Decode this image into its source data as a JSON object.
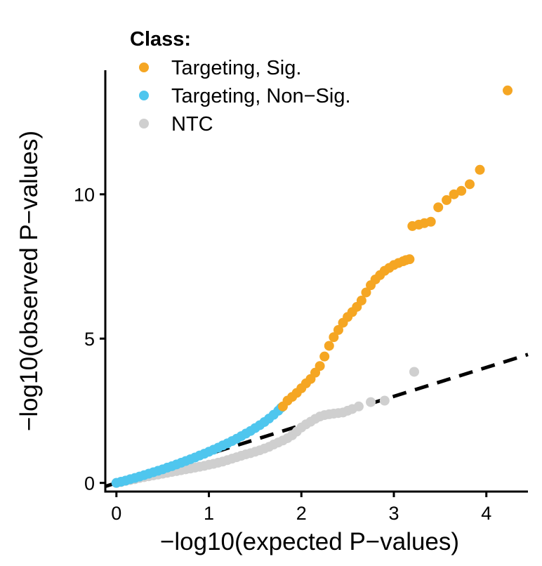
{
  "chart_data": {
    "type": "scatter",
    "title": "",
    "xlabel": "−log10(expected P−values)",
    "ylabel": "−log10(observed P−values)",
    "xlim": [
      -0.12,
      4.45
    ],
    "ylim": [
      -0.3,
      14.3
    ],
    "xticks": [
      0,
      1,
      2,
      3,
      4
    ],
    "yticks": [
      0,
      5,
      10
    ],
    "grid": false,
    "legend": {
      "title": "Class:",
      "position": "top-left",
      "entries": [
        {
          "label": "Targeting, Sig.",
          "color": "#F5A623"
        },
        {
          "label": "Targeting, Non−Sig.",
          "color": "#4FC6EE"
        },
        {
          "label": "NTC",
          "color": "#CFCFCF"
        }
      ]
    },
    "reference_line": {
      "style": "dashed",
      "color": "#000000",
      "points": [
        [
          -0.12,
          -0.12
        ],
        [
          4.45,
          4.45
        ]
      ]
    },
    "series": [
      {
        "name": "NTC",
        "color": "#CFCFCF",
        "points": [
          [
            0.0,
            0.0
          ],
          [
            0.05,
            0.03
          ],
          [
            0.1,
            0.07
          ],
          [
            0.15,
            0.1
          ],
          [
            0.2,
            0.13
          ],
          [
            0.25,
            0.17
          ],
          [
            0.3,
            0.2
          ],
          [
            0.35,
            0.23
          ],
          [
            0.4,
            0.26
          ],
          [
            0.45,
            0.29
          ],
          [
            0.5,
            0.32
          ],
          [
            0.55,
            0.35
          ],
          [
            0.6,
            0.38
          ],
          [
            0.65,
            0.41
          ],
          [
            0.7,
            0.44
          ],
          [
            0.75,
            0.47
          ],
          [
            0.8,
            0.5
          ],
          [
            0.85,
            0.53
          ],
          [
            0.9,
            0.56
          ],
          [
            0.95,
            0.59
          ],
          [
            1.0,
            0.63
          ],
          [
            1.05,
            0.66
          ],
          [
            1.1,
            0.7
          ],
          [
            1.15,
            0.74
          ],
          [
            1.2,
            0.79
          ],
          [
            1.25,
            0.84
          ],
          [
            1.3,
            0.89
          ],
          [
            1.35,
            0.94
          ],
          [
            1.4,
            0.99
          ],
          [
            1.45,
            1.03
          ],
          [
            1.5,
            1.08
          ],
          [
            1.55,
            1.13
          ],
          [
            1.6,
            1.19
          ],
          [
            1.65,
            1.25
          ],
          [
            1.7,
            1.33
          ],
          [
            1.75,
            1.4
          ],
          [
            1.8,
            1.47
          ],
          [
            1.85,
            1.55
          ],
          [
            1.9,
            1.65
          ],
          [
            1.95,
            1.78
          ],
          [
            2.0,
            1.92
          ],
          [
            2.05,
            2.03
          ],
          [
            2.1,
            2.12
          ],
          [
            2.15,
            2.22
          ],
          [
            2.2,
            2.3
          ],
          [
            2.25,
            2.35
          ],
          [
            2.3,
            2.38
          ],
          [
            2.35,
            2.4
          ],
          [
            2.4,
            2.42
          ],
          [
            2.45,
            2.44
          ],
          [
            2.5,
            2.5
          ],
          [
            2.55,
            2.56
          ],
          [
            2.62,
            2.65
          ],
          [
            2.75,
            2.8
          ],
          [
            2.9,
            2.85
          ],
          [
            3.22,
            3.85
          ]
        ]
      },
      {
        "name": "Targeting, Non−Sig.",
        "color": "#4FC6EE",
        "points": [
          [
            0.0,
            0.0
          ],
          [
            0.05,
            0.04
          ],
          [
            0.1,
            0.08
          ],
          [
            0.15,
            0.13
          ],
          [
            0.2,
            0.17
          ],
          [
            0.25,
            0.22
          ],
          [
            0.3,
            0.27
          ],
          [
            0.35,
            0.32
          ],
          [
            0.4,
            0.37
          ],
          [
            0.45,
            0.42
          ],
          [
            0.5,
            0.47
          ],
          [
            0.55,
            0.53
          ],
          [
            0.6,
            0.58
          ],
          [
            0.65,
            0.64
          ],
          [
            0.7,
            0.7
          ],
          [
            0.75,
            0.76
          ],
          [
            0.8,
            0.82
          ],
          [
            0.85,
            0.88
          ],
          [
            0.9,
            0.95
          ],
          [
            0.95,
            1.01
          ],
          [
            1.0,
            1.08
          ],
          [
            1.05,
            1.15
          ],
          [
            1.1,
            1.22
          ],
          [
            1.15,
            1.3
          ],
          [
            1.2,
            1.37
          ],
          [
            1.25,
            1.45
          ],
          [
            1.3,
            1.53
          ],
          [
            1.35,
            1.62
          ],
          [
            1.4,
            1.71
          ],
          [
            1.45,
            1.8
          ],
          [
            1.5,
            1.9
          ],
          [
            1.55,
            2.0
          ],
          [
            1.6,
            2.11
          ],
          [
            1.65,
            2.23
          ],
          [
            1.7,
            2.36
          ],
          [
            1.75,
            2.5
          ],
          [
            1.78,
            2.6
          ]
        ]
      },
      {
        "name": "Targeting, Sig.",
        "color": "#F5A623",
        "points": [
          [
            1.8,
            2.65
          ],
          [
            1.85,
            2.85
          ],
          [
            1.9,
            2.98
          ],
          [
            1.95,
            3.12
          ],
          [
            2.0,
            3.28
          ],
          [
            2.05,
            3.45
          ],
          [
            2.1,
            3.6
          ],
          [
            2.15,
            3.82
          ],
          [
            2.2,
            4.05
          ],
          [
            2.25,
            4.38
          ],
          [
            2.3,
            4.75
          ],
          [
            2.35,
            5.05
          ],
          [
            2.4,
            5.3
          ],
          [
            2.45,
            5.55
          ],
          [
            2.5,
            5.75
          ],
          [
            2.55,
            5.92
          ],
          [
            2.6,
            6.1
          ],
          [
            2.65,
            6.32
          ],
          [
            2.7,
            6.6
          ],
          [
            2.75,
            6.85
          ],
          [
            2.8,
            7.05
          ],
          [
            2.85,
            7.2
          ],
          [
            2.9,
            7.35
          ],
          [
            2.95,
            7.45
          ],
          [
            3.0,
            7.55
          ],
          [
            3.05,
            7.62
          ],
          [
            3.1,
            7.68
          ],
          [
            3.13,
            7.72
          ],
          [
            3.17,
            7.75
          ],
          [
            3.2,
            8.9
          ],
          [
            3.27,
            8.95
          ],
          [
            3.33,
            9.0
          ],
          [
            3.4,
            9.05
          ],
          [
            3.48,
            9.55
          ],
          [
            3.57,
            9.8
          ],
          [
            3.65,
            10.0
          ],
          [
            3.73,
            10.12
          ],
          [
            3.82,
            10.35
          ],
          [
            3.93,
            10.85
          ],
          [
            4.23,
            13.6
          ]
        ]
      }
    ]
  }
}
